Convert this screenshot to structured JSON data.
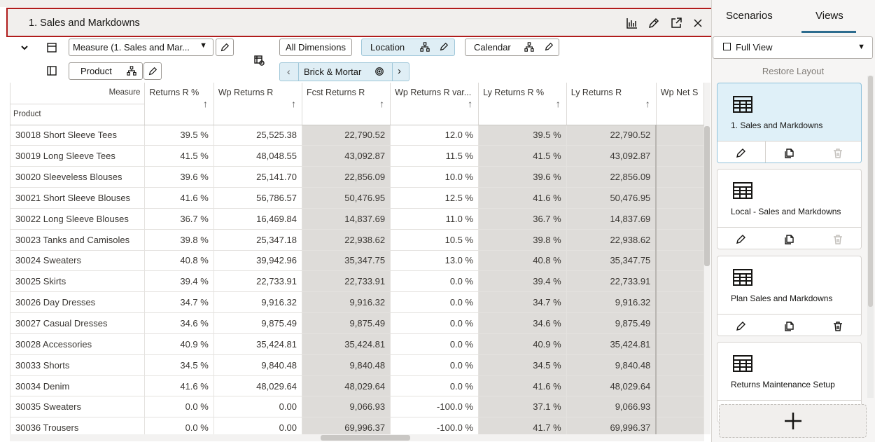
{
  "view": {
    "title": "1. Sales and Markdowns",
    "toolbar": {
      "measure_selector": "Measure (1. Sales and Mar...",
      "product_pill": "Product",
      "all_dimensions": "All Dimensions",
      "location": "Location",
      "calendar": "Calendar",
      "location_value": "Brick & Mortar"
    },
    "grid": {
      "corner_measure": "Measure",
      "corner_product": "Product",
      "columns": [
        "Returns R %",
        "Wp Returns R",
        "Fcst Returns R",
        "Wp Returns R var...",
        "Ly Returns R %",
        "Ly Returns R",
        "Wp Net S"
      ],
      "sort_indicator": "↑",
      "rows": [
        {
          "product": "30018 Short Sleeve Tees",
          "cells": [
            "39.5 %",
            "25,525.38",
            "22,790.52",
            "12.0 %",
            "39.5 %",
            "22,790.52"
          ]
        },
        {
          "product": "30019 Long Sleeve Tees",
          "cells": [
            "41.5 %",
            "48,048.55",
            "43,092.87",
            "11.5 %",
            "41.5 %",
            "43,092.87"
          ]
        },
        {
          "product": "30020 Sleeveless Blouses",
          "cells": [
            "39.6 %",
            "25,141.70",
            "22,856.09",
            "10.0 %",
            "39.6 %",
            "22,856.09"
          ]
        },
        {
          "product": "30021 Short Sleeve Blouses",
          "cells": [
            "41.6 %",
            "56,786.57",
            "50,476.95",
            "12.5 %",
            "41.6 %",
            "50,476.95"
          ]
        },
        {
          "product": "30022 Long Sleeve Blouses",
          "cells": [
            "36.7 %",
            "16,469.84",
            "14,837.69",
            "11.0 %",
            "36.7 %",
            "14,837.69"
          ]
        },
        {
          "product": "30023 Tanks and Camisoles",
          "cells": [
            "39.8 %",
            "25,347.18",
            "22,938.62",
            "10.5 %",
            "39.8 %",
            "22,938.62"
          ]
        },
        {
          "product": "30024 Sweaters",
          "cells": [
            "40.8 %",
            "39,942.96",
            "35,347.75",
            "13.0 %",
            "40.8 %",
            "35,347.75"
          ]
        },
        {
          "product": "30025 Skirts",
          "cells": [
            "39.4 %",
            "22,733.91",
            "22,733.91",
            "0.0 %",
            "39.4 %",
            "22,733.91"
          ]
        },
        {
          "product": "30026 Day Dresses",
          "cells": [
            "34.7 %",
            "9,916.32",
            "9,916.32",
            "0.0 %",
            "34.7 %",
            "9,916.32"
          ]
        },
        {
          "product": "30027 Casual Dresses",
          "cells": [
            "34.6 %",
            "9,875.49",
            "9,875.49",
            "0.0 %",
            "34.6 %",
            "9,875.49"
          ]
        },
        {
          "product": "30028 Accessories",
          "cells": [
            "40.9 %",
            "35,424.81",
            "35,424.81",
            "0.0 %",
            "40.9 %",
            "35,424.81"
          ]
        },
        {
          "product": "30033 Shorts",
          "cells": [
            "34.5 %",
            "9,840.48",
            "9,840.48",
            "0.0 %",
            "34.5 %",
            "9,840.48"
          ]
        },
        {
          "product": "30034 Denim",
          "cells": [
            "41.6 %",
            "48,029.64",
            "48,029.64",
            "0.0 %",
            "41.6 %",
            "48,029.64"
          ]
        },
        {
          "product": "30035 Sweaters",
          "cells": [
            "0.0 %",
            "0.00",
            "9,066.93",
            "-100.0 %",
            "37.1 %",
            "9,066.93"
          ]
        },
        {
          "product": "30036 Trousers",
          "cells": [
            "0.0 %",
            "0.00",
            "69,996.37",
            "-100.0 %",
            "41.7 %",
            "69,996.37"
          ]
        }
      ]
    }
  },
  "side_panel": {
    "tabs": [
      "Scenarios",
      "Views"
    ],
    "active_tab": "Views",
    "view_filter": "Full View",
    "restore_layout": "Restore Layout",
    "views": [
      {
        "name": "1. Sales and Markdowns",
        "selected": true,
        "delete_enabled": false
      },
      {
        "name": "Local - Sales and Markdowns",
        "selected": false,
        "delete_enabled": false
      },
      {
        "name": "Plan Sales and Markdowns",
        "selected": false,
        "delete_enabled": true
      },
      {
        "name": "Returns Maintenance Setup",
        "selected": false,
        "delete_enabled": true
      }
    ]
  },
  "colors": {
    "accent": "#2d6c8e",
    "highlight_border": "#b01c1c",
    "readonly_cell": "#dedcd9",
    "selected_card": "#dff0f8"
  }
}
